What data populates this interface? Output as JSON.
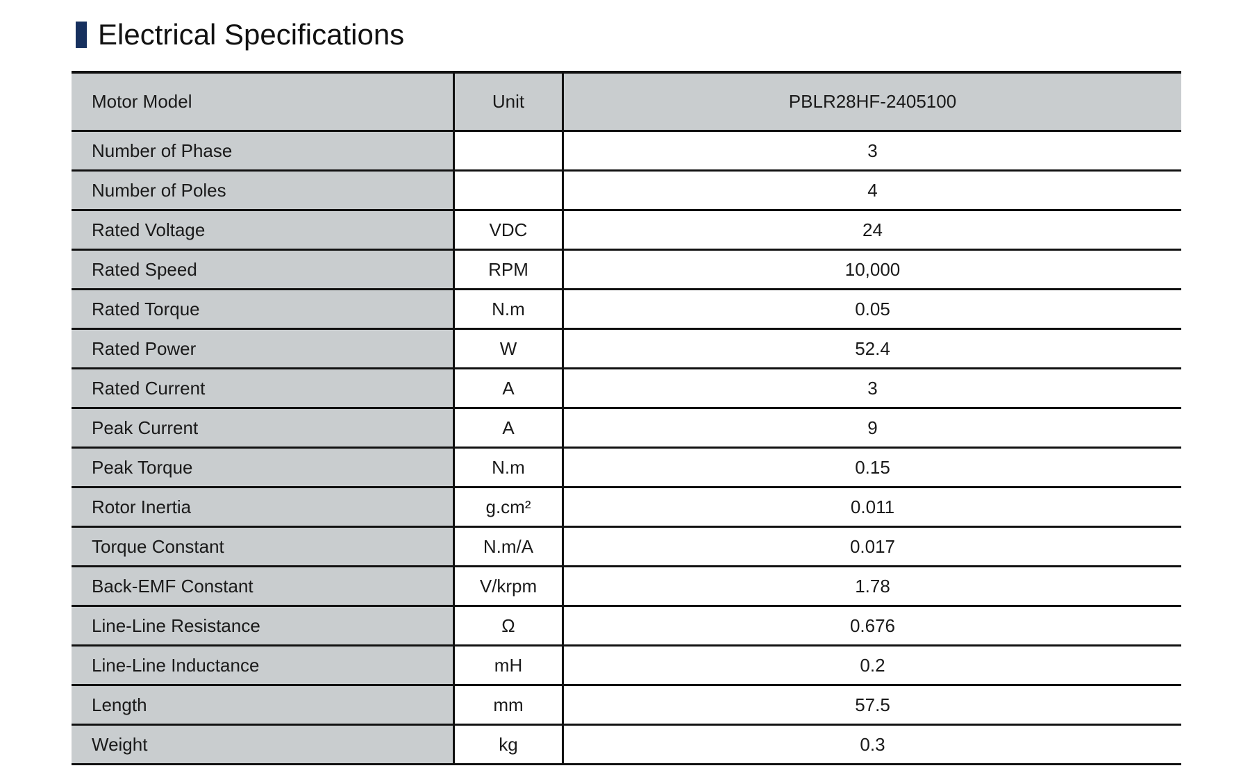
{
  "title": "Electrical Specifications",
  "accent_color": "#16305e",
  "header": {
    "name": "Motor Model",
    "unit": "Unit",
    "value": "PBLR28HF-2405100"
  },
  "rows": [
    {
      "name": "Number of Phase",
      "unit": "",
      "value": "3"
    },
    {
      "name": "Number of Poles",
      "unit": "",
      "value": "4"
    },
    {
      "name": "Rated Voltage",
      "unit": "VDC",
      "value": "24"
    },
    {
      "name": "Rated Speed",
      "unit": "RPM",
      "value": "10,000"
    },
    {
      "name": "Rated Torque",
      "unit": "N.m",
      "value": "0.05"
    },
    {
      "name": "Rated Power",
      "unit": "W",
      "value": "52.4"
    },
    {
      "name": "Rated Current",
      "unit": "A",
      "value": "3"
    },
    {
      "name": "Peak Current",
      "unit": "A",
      "value": "9"
    },
    {
      "name": "Peak Torque",
      "unit": "N.m",
      "value": "0.15"
    },
    {
      "name": "Rotor Inertia",
      "unit": "g.cm²",
      "value": "0.011"
    },
    {
      "name": "Torque Constant",
      "unit": "N.m/A",
      "value": "0.017"
    },
    {
      "name": "Back-EMF Constant",
      "unit": "V/krpm",
      "value": "1.78"
    },
    {
      "name": "Line-Line Resistance",
      "unit": "Ω",
      "value": "0.676"
    },
    {
      "name": "Line-Line Inductance",
      "unit": "mH",
      "value": "0.2"
    },
    {
      "name": "Length",
      "unit": "mm",
      "value": "57.5"
    },
    {
      "name": "Weight",
      "unit": "kg",
      "value": "0.3"
    }
  ]
}
